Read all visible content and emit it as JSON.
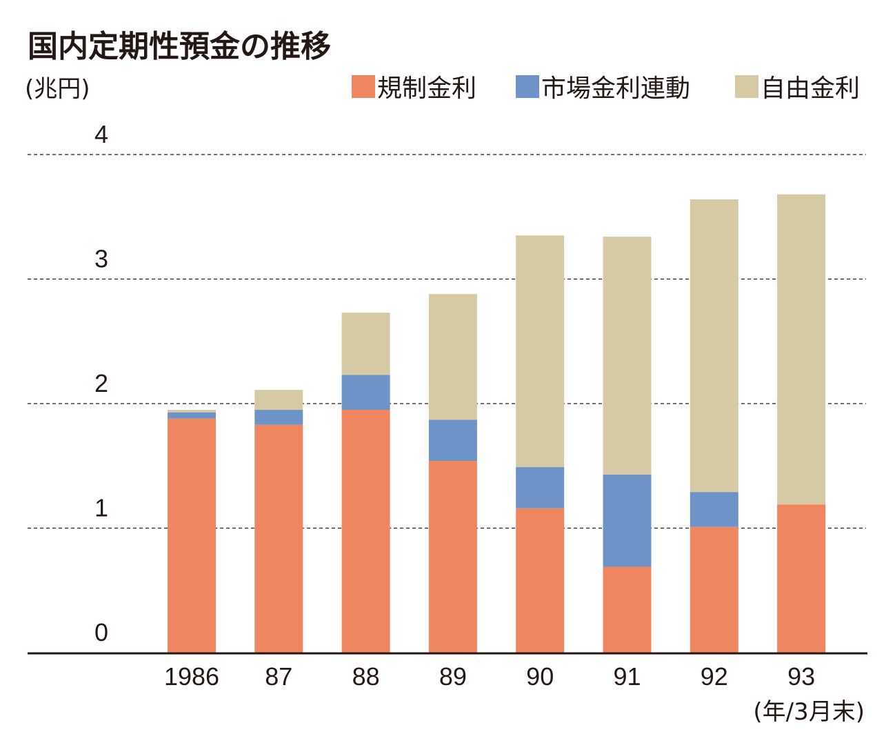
{
  "chart_data": {
    "type": "bar",
    "stacked": true,
    "title": "国内定期性預金の推移",
    "ylabel": "(兆円)",
    "xlabel": "(年/3月末)",
    "ylim": [
      0,
      4
    ],
    "yticks": [
      "0",
      "1",
      "2",
      "3",
      "4"
    ],
    "grid": true,
    "legend_position": "top-right",
    "categories": [
      "1986",
      "87",
      "88",
      "89",
      "90",
      "91",
      "92",
      "93"
    ],
    "series": [
      {
        "name": "規制金利",
        "color": "#F0865F",
        "values": [
          1.88,
          1.83,
          1.95,
          1.54,
          1.16,
          0.69,
          1.01,
          1.19
        ]
      },
      {
        "name": "市場金利連動",
        "color": "#6E93C9",
        "values": [
          0.05,
          0.12,
          0.28,
          0.33,
          0.33,
          0.74,
          0.28,
          0.0
        ]
      },
      {
        "name": "自由金利",
        "color": "#D5CAA3",
        "values": [
          0.02,
          0.16,
          0.5,
          1.01,
          1.86,
          1.91,
          2.35,
          2.49
        ]
      }
    ]
  }
}
